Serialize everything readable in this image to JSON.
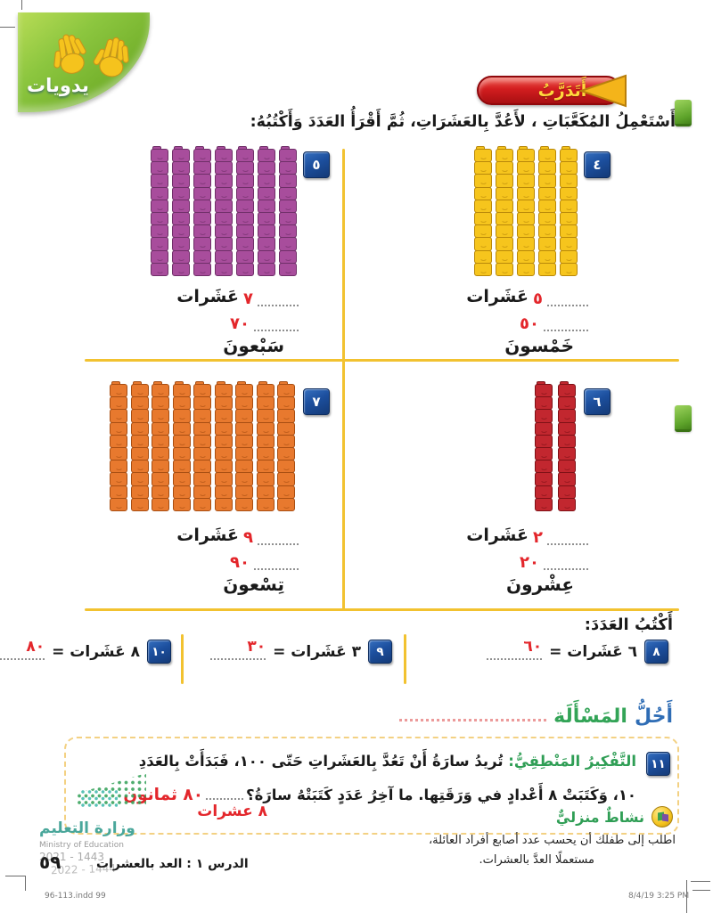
{
  "page": {
    "badge_tools": "يدويات",
    "banner": "أَتَدَرَّبُ",
    "instruction": "أَسْتَعْمِلُ المُكَعَّبَاتِ ، لأَعُدَّ بِالعَشَرَاتِ، ثُمَّ أَقْرَأُ العَدَدَ وَأَكْتُبُهُ:"
  },
  "icons": {
    "tools": "hands-icon",
    "banner": "triangle-left-icon",
    "home_activity": "cube-house-icon"
  },
  "exercises": [
    {
      "id": "٤",
      "towers": 5,
      "cube_color": "#f6c51d",
      "cube_dark": "#b8880a",
      "tens": "٥",
      "tens_word": "عَشَرات",
      "value": "٥٠",
      "word": "خَمْسونَ"
    },
    {
      "id": "٥",
      "towers": 7,
      "cube_color": "#a84d9c",
      "cube_dark": "#6f2f68",
      "tens": "٧",
      "tens_word": "عَشَرات",
      "value": "٧٠",
      "word": "سَبْعونَ"
    },
    {
      "id": "٦",
      "towers": 2,
      "cube_color": "#c2272f",
      "cube_dark": "#7e1116",
      "tens": "٢",
      "tens_word": "عَشَرات",
      "value": "٢٠",
      "word": "عِشْرونَ"
    },
    {
      "id": "٧",
      "towers": 9,
      "cube_color": "#e8792e",
      "cube_dark": "#a84e12",
      "tens": "٩",
      "tens_word": "عَشَرات",
      "value": "٩٠",
      "word": "تِسْعونَ"
    }
  ],
  "write_number": {
    "heading": "أَكْتُبُ العَدَدَ:",
    "problems": [
      {
        "number": "٨",
        "text": "٦ عَشَرات =",
        "answer": "٦٠"
      },
      {
        "number": "٩",
        "text": "٣ عَشَرات =",
        "answer": "٣٠"
      },
      {
        "number": "١٠",
        "text": "٨ عَشَرات =",
        "answer": "٨٠"
      }
    ]
  },
  "solve": {
    "title1": "أَحُلُّ",
    "title2": "المَسْأَلَة",
    "number": "١١",
    "label": "التَّفْكِيرُ المَنْطِقِيُّ:",
    "line1": "تُريدُ سارَةُ أَنْ تَعُدَّ بِالعَشَراتِ حَتّى ١٠٠، فَبَدَأَتْ بِالعَدَدِ",
    "line2": "١٠، وَكَتَبَتْ ٨ أَعْدادٍ في وَرَقَتِها. ما آخِرُ عَدَدٍ كَتَبَتْهُ سارَةُ؟",
    "answer_main": "٨٠ ثمانون",
    "answer_secondary": "٨ عشرات"
  },
  "home_activity": {
    "title": "نشاطٌ منزليٌّ",
    "line1": "اطلب إلى طفلك أن يحسب عدد أصابع أفراد العائلة،",
    "line2": "مستعملًا العدَّ بالعشرات."
  },
  "footer": {
    "ministry_ar": "وزارة التعليم",
    "ministry_en": "Ministry of Education",
    "years1": "2021 - 1443",
    "years2": "2022 - 1444",
    "lesson": "الدرس ١ : العد بالعشرات",
    "page_number": "٥٩",
    "print_left": "96-113.indd   99",
    "print_right": "8/4/19   3:25 PM"
  },
  "colors": {
    "accent_yellow": "#f2c230",
    "badge_blue": "#1c4f9e",
    "answer_red": "#e3262b",
    "green_text": "#2f9e55",
    "title_blue": "#2f6db5",
    "banner_red": "#d21d1f",
    "banner_text": "#ffd83d",
    "ministry_teal": "#4aa79b"
  }
}
